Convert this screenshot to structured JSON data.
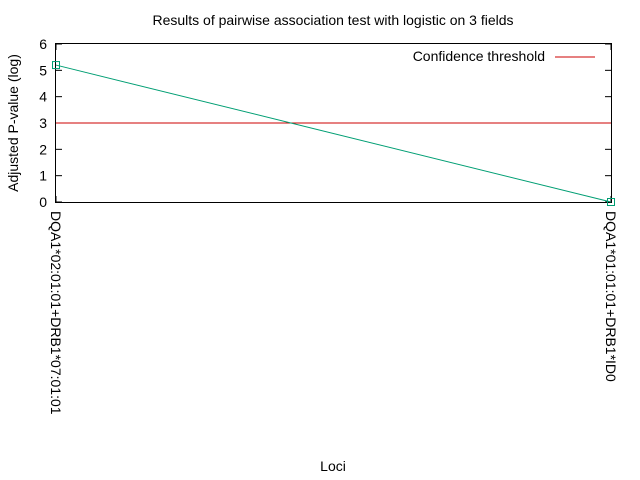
{
  "chart_data": {
    "type": "line",
    "title": "Results of pairwise association test with logistic on 3 fields",
    "xlabel": "Loci",
    "ylabel": "Adjusted P-value (log)",
    "categories": [
      "DQA1*02:01:01+DRB1*07:01:01",
      "DQA1*01:01:01+DRB1*ID0"
    ],
    "series": [
      {
        "values": [
          5.2,
          0.0
        ],
        "color": "#009e73",
        "marker": "square"
      }
    ],
    "threshold": {
      "name": "Confidence threshold",
      "value": 3,
      "color": "#cc0000"
    },
    "ylim": [
      0,
      6
    ],
    "yticks": [
      0,
      1,
      2,
      3,
      4,
      5,
      6
    ],
    "grid": false,
    "legend": "top-right"
  }
}
